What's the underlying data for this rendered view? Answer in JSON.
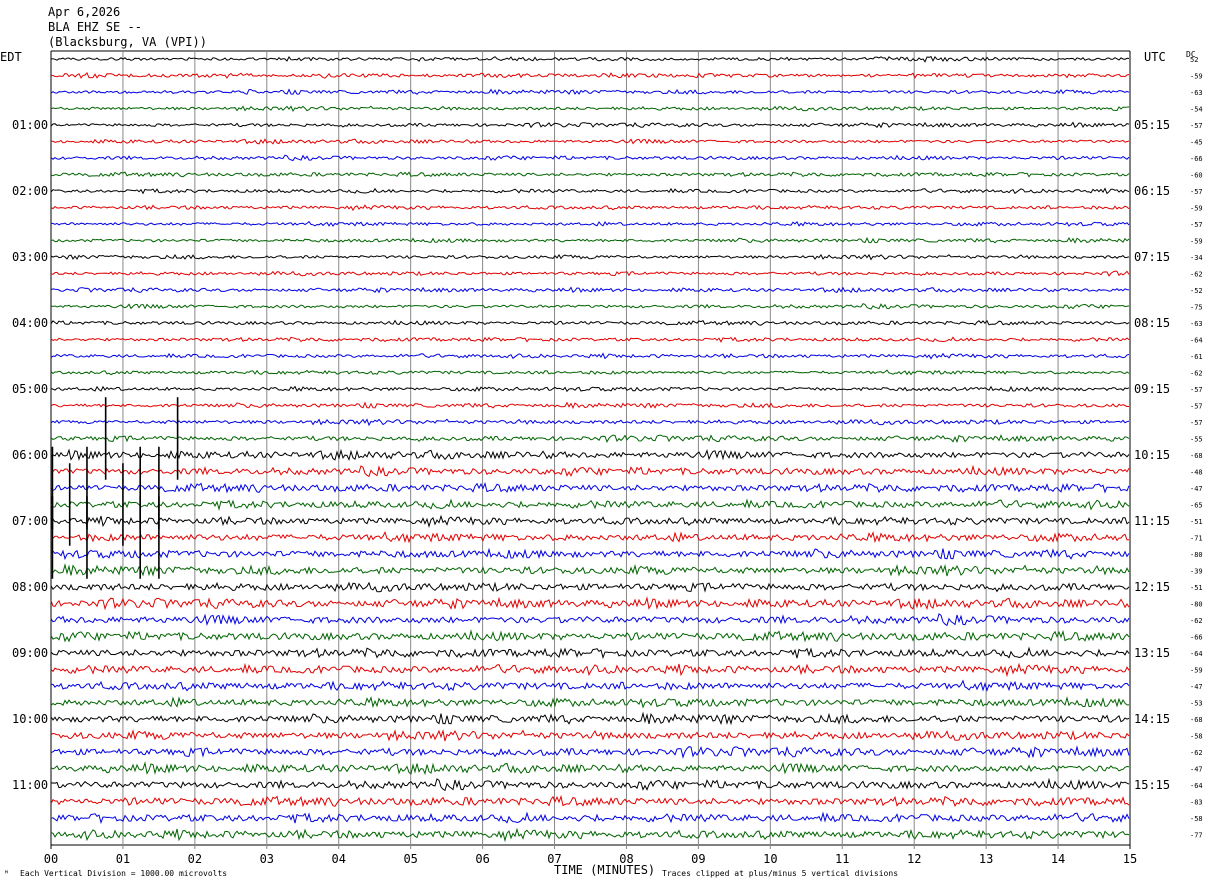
{
  "header": {
    "date": "Apr 6,2026",
    "station": "BLA EHZ SE --",
    "location": "(Blacksburg, VA (VPI))"
  },
  "chart_data": {
    "type": "helicorder",
    "left_axis_label": "EDT",
    "right_axis_label": "UTC",
    "dc_label": "DC",
    "xlabel": "TIME (MINUTES)",
    "xlim": [
      0,
      15
    ],
    "x_ticks": [
      "00",
      "01",
      "02",
      "03",
      "04",
      "05",
      "06",
      "07",
      "08",
      "09",
      "10",
      "11",
      "12",
      "13",
      "14",
      "15"
    ],
    "line_colors": [
      "#000000",
      "#e00000",
      "#0000e0",
      "#006400"
    ],
    "line_minutes": 15,
    "edt_labels": [
      {
        "row": 4,
        "label": "01:00"
      },
      {
        "row": 8,
        "label": "02:00"
      },
      {
        "row": 12,
        "label": "03:00"
      },
      {
        "row": 16,
        "label": "04:00"
      },
      {
        "row": 20,
        "label": "05:00"
      },
      {
        "row": 24,
        "label": "06:00"
      },
      {
        "row": 28,
        "label": "07:00"
      },
      {
        "row": 32,
        "label": "08:00"
      },
      {
        "row": 36,
        "label": "09:00"
      },
      {
        "row": 40,
        "label": "10:00"
      },
      {
        "row": 44,
        "label": "11:00"
      }
    ],
    "utc_labels": [
      {
        "row": 4,
        "label": "05:15"
      },
      {
        "row": 8,
        "label": "06:15"
      },
      {
        "row": 12,
        "label": "07:15"
      },
      {
        "row": 16,
        "label": "08:15"
      },
      {
        "row": 20,
        "label": "09:15"
      },
      {
        "row": 24,
        "label": "10:15"
      },
      {
        "row": 28,
        "label": "11:15"
      },
      {
        "row": 32,
        "label": "12:15"
      },
      {
        "row": 36,
        "label": "13:15"
      },
      {
        "row": 40,
        "label": "14:15"
      },
      {
        "row": 44,
        "label": "15:15"
      }
    ],
    "dc_offsets": [
      "52",
      "-59",
      "-63",
      "-54",
      "-57",
      "-45",
      "-66",
      "-60",
      "-57",
      "-59",
      "-57",
      "-59",
      "-34",
      "-62",
      "-52",
      "-75",
      "-63",
      "-64",
      "-61",
      "-62",
      "-57",
      "-57",
      "-57",
      "-55",
      "-68",
      "-48",
      "-47",
      "-65",
      "-51",
      "-71",
      "-80",
      "-39",
      "-51",
      "-80",
      "-62",
      "-66",
      "-64",
      "-59",
      "-47",
      "-53",
      "-68",
      "-58",
      "-62",
      "-47",
      "-64",
      "-83",
      "-58",
      "-77"
    ],
    "relative_noise_amplitude": [
      0.5,
      0.5,
      0.5,
      0.5,
      0.5,
      0.5,
      0.5,
      0.5,
      0.5,
      0.5,
      0.5,
      0.5,
      0.5,
      0.5,
      0.5,
      0.5,
      0.5,
      0.5,
      0.5,
      0.5,
      0.55,
      0.55,
      0.6,
      0.7,
      1.0,
      1.0,
      1.0,
      1.0,
      1.0,
      1.1,
      1.1,
      1.1,
      1.1,
      1.1,
      1.1,
      1.1,
      1.1,
      1.1,
      1.1,
      1.1,
      1.1,
      1.1,
      1.1,
      1.1,
      1.1,
      1.1,
      1.1,
      1.1
    ],
    "spikes": [
      {
        "row": 23,
        "minute": 0.76
      },
      {
        "row": 23,
        "minute": 1.76
      },
      {
        "row": 26,
        "minute": 0.02
      },
      {
        "row": 26,
        "minute": 0.5
      },
      {
        "row": 26,
        "minute": 1.24
      },
      {
        "row": 26,
        "minute": 1.5
      },
      {
        "row": 27,
        "minute": 0.26
      },
      {
        "row": 27,
        "minute": 1.0
      },
      {
        "row": 29,
        "minute": 0.02
      },
      {
        "row": 29,
        "minute": 0.5
      },
      {
        "row": 29,
        "minute": 1.24
      },
      {
        "row": 29,
        "minute": 1.5
      }
    ],
    "footer_left": "Each Vertical Division = 1000.00 microvolts",
    "footer_right": "Traces clipped at plus/minus 5 vertical divisions"
  }
}
